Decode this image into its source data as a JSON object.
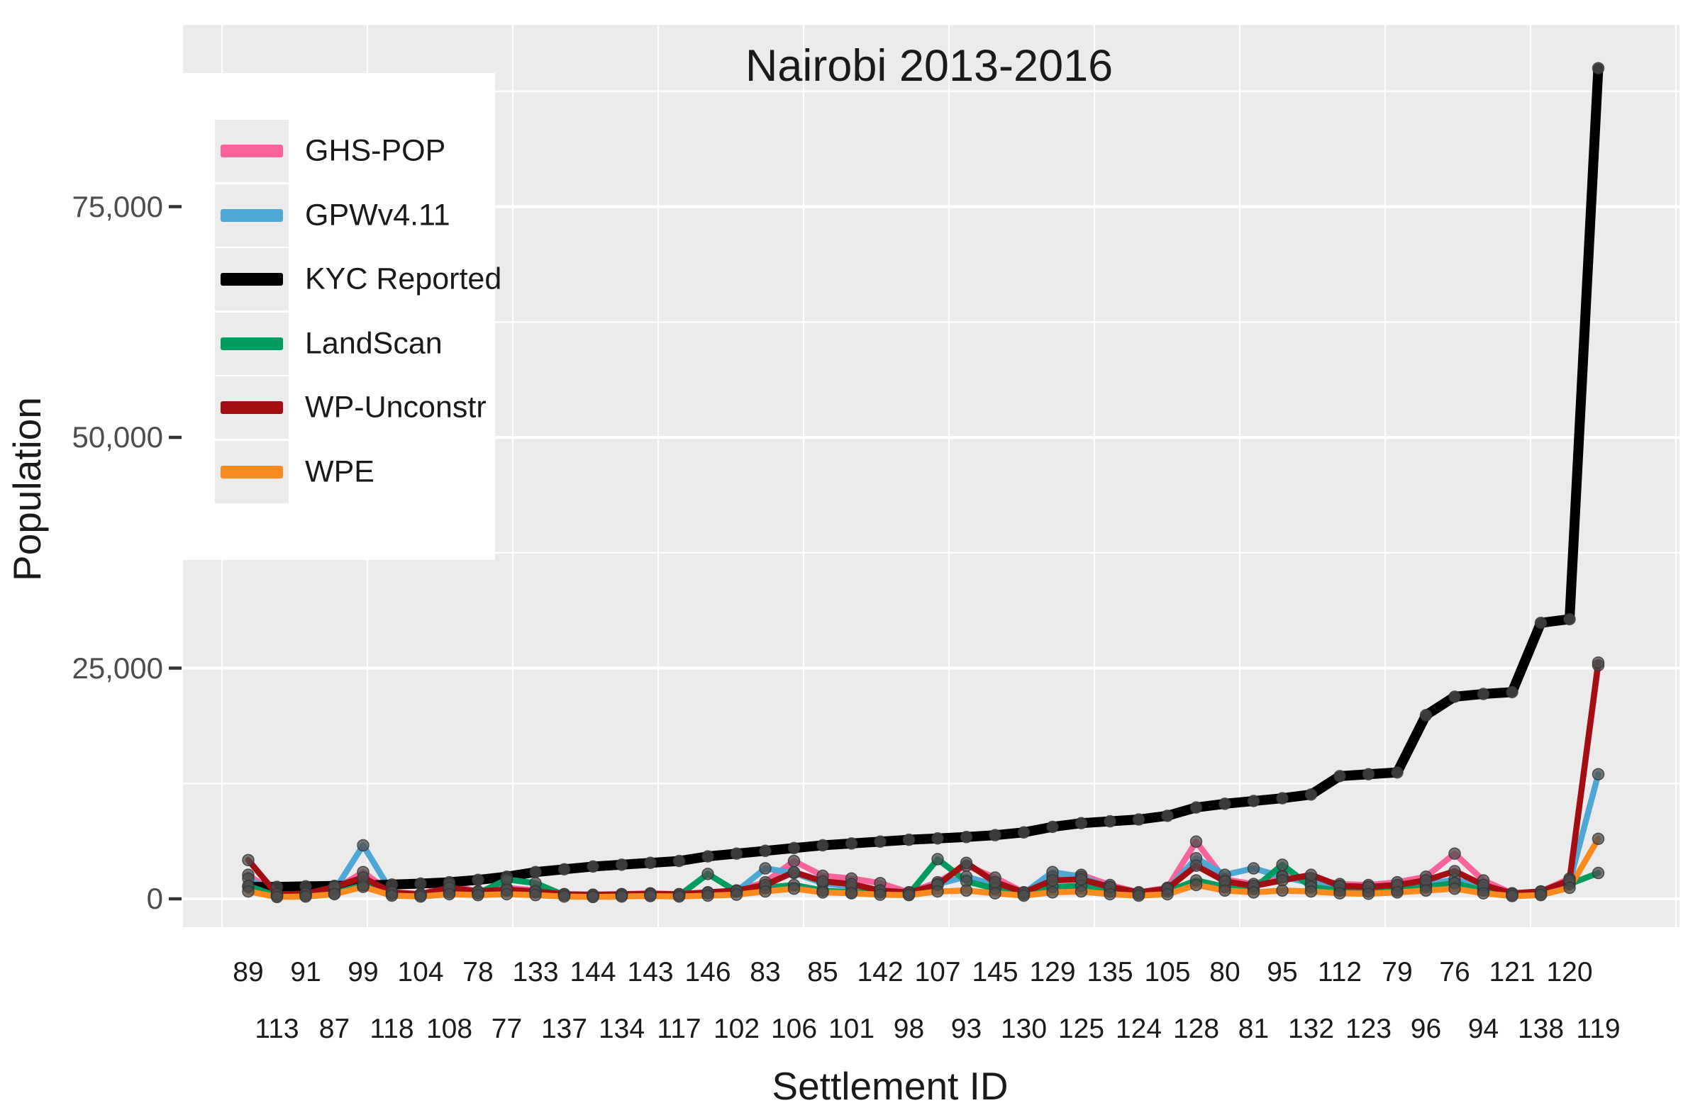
{
  "chart_data": {
    "type": "line",
    "title": "Nairobi 2013-2016",
    "xlabel": "Settlement ID",
    "ylabel": "Population",
    "ylim": [
      0,
      92000
    ],
    "grid": true,
    "legend_position": "top-left",
    "panel_bg": "#EBEBEB",
    "gridline_color": "#FFFFFF",
    "point_color": "#4d4d4d",
    "y_ticks": [
      {
        "value": 0,
        "label": "0"
      },
      {
        "value": 25000,
        "label": "25,000"
      },
      {
        "value": 50000,
        "label": "50,000"
      },
      {
        "value": 75000,
        "label": "75,000"
      }
    ],
    "y_minor_ticks": [
      12500,
      37500,
      62500,
      87500
    ],
    "categories": [
      "89",
      "113",
      "91",
      "87",
      "99",
      "118",
      "104",
      "108",
      "78",
      "77",
      "133",
      "137",
      "144",
      "134",
      "143",
      "117",
      "146",
      "102",
      "83",
      "106",
      "85",
      "101",
      "142",
      "98",
      "107",
      "93",
      "145",
      "130",
      "129",
      "125",
      "135",
      "124",
      "105",
      "128",
      "80",
      "81",
      "95",
      "132",
      "112",
      "123",
      "79",
      "96",
      "76",
      "94",
      "121",
      "138",
      "120",
      "119"
    ],
    "series": [
      {
        "name": "GHS-POP",
        "color": "#F8639C",
        "values": [
          2600,
          400,
          500,
          1000,
          2900,
          600,
          500,
          1500,
          800,
          1200,
          900,
          500,
          400,
          500,
          600,
          500,
          700,
          900,
          1800,
          4100,
          2500,
          2200,
          1700,
          700,
          1800,
          3600,
          2300,
          700,
          2400,
          2600,
          1500,
          700,
          1200,
          6200,
          2100,
          1600,
          2500,
          2200,
          1600,
          1500,
          1800,
          2400,
          4900,
          2000,
          600,
          800,
          2200,
          25300
        ]
      },
      {
        "name": "GPWv4.11",
        "color": "#4FA7D5",
        "values": [
          2200,
          500,
          450,
          900,
          5800,
          700,
          450,
          1000,
          700,
          900,
          700,
          450,
          400,
          450,
          500,
          450,
          600,
          800,
          3300,
          2800,
          1700,
          1300,
          900,
          600,
          1600,
          2400,
          1500,
          600,
          2900,
          2400,
          1200,
          600,
          1000,
          4400,
          2600,
          3300,
          2400,
          1700,
          1400,
          1300,
          1300,
          1500,
          2100,
          1200,
          500,
          700,
          1800,
          13500
        ]
      },
      {
        "name": "KYC Reported",
        "color": "#000000",
        "values": [
          1300,
          1300,
          1350,
          1400,
          1450,
          1550,
          1650,
          1800,
          2050,
          2400,
          2900,
          3200,
          3500,
          3700,
          3900,
          4100,
          4600,
          4900,
          5200,
          5500,
          5800,
          6000,
          6200,
          6400,
          6550,
          6700,
          6900,
          7200,
          7800,
          8200,
          8400,
          8600,
          9000,
          9900,
          10300,
          10600,
          10900,
          11300,
          13300,
          13500,
          13700,
          19900,
          21900,
          22200,
          22400,
          29900,
          30300,
          90000
        ]
      },
      {
        "name": "LandScan",
        "color": "#009B5F",
        "values": [
          1400,
          300,
          350,
          600,
          1500,
          500,
          350,
          700,
          600,
          2100,
          1700,
          400,
          300,
          350,
          400,
          350,
          2700,
          800,
          1200,
          1500,
          900,
          700,
          700,
          500,
          4300,
          1900,
          1100,
          500,
          1300,
          1400,
          800,
          500,
          800,
          2000,
          1300,
          1100,
          3700,
          1300,
          900,
          800,
          900,
          1300,
          1700,
          900,
          400,
          500,
          1600,
          2800
        ]
      },
      {
        "name": "WP-Unconstr",
        "color": "#A30E13",
        "values": [
          4200,
          500,
          550,
          1300,
          2300,
          700,
          500,
          1200,
          800,
          1000,
          800,
          500,
          450,
          500,
          550,
          500,
          700,
          900,
          1500,
          2900,
          1900,
          1600,
          900,
          700,
          1500,
          3900,
          1800,
          700,
          2000,
          2100,
          1300,
          700,
          1100,
          3600,
          1900,
          1400,
          2000,
          2600,
          1400,
          1300,
          1500,
          2000,
          3000,
          1500,
          600,
          800,
          2000,
          25600
        ]
      },
      {
        "name": "WPE",
        "color": "#F98A20",
        "values": [
          800,
          200,
          250,
          500,
          1300,
          350,
          250,
          500,
          400,
          500,
          400,
          250,
          200,
          250,
          300,
          250,
          350,
          450,
          800,
          1100,
          700,
          600,
          450,
          400,
          800,
          900,
          600,
          350,
          700,
          800,
          500,
          350,
          500,
          1500,
          900,
          700,
          900,
          800,
          600,
          550,
          700,
          900,
          1100,
          600,
          300,
          400,
          1200,
          6500
        ]
      }
    ]
  }
}
